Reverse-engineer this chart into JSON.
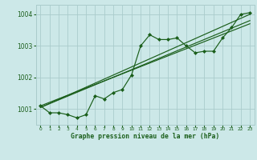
{
  "title": "Graphe pression niveau de la mer (hPa)",
  "bg_color": "#cce8e8",
  "grid_color": "#aacccc",
  "line_color": "#1a5e1a",
  "marker_color": "#1a5e1a",
  "xlim": [
    -0.5,
    23.5
  ],
  "ylim": [
    1000.5,
    1004.3
  ],
  "yticks": [
    1001,
    1002,
    1003,
    1004
  ],
  "xticks": [
    0,
    1,
    2,
    3,
    4,
    5,
    6,
    7,
    8,
    9,
    10,
    11,
    12,
    13,
    14,
    15,
    16,
    17,
    18,
    19,
    20,
    21,
    22,
    23
  ],
  "series": [
    [
      0,
      1001.1
    ],
    [
      1,
      1000.88
    ],
    [
      2,
      1000.88
    ],
    [
      3,
      1000.82
    ],
    [
      4,
      1000.72
    ],
    [
      5,
      1000.82
    ],
    [
      6,
      1001.42
    ],
    [
      7,
      1001.32
    ],
    [
      8,
      1001.52
    ],
    [
      9,
      1001.62
    ],
    [
      10,
      1002.08
    ],
    [
      11,
      1003.0
    ],
    [
      12,
      1003.35
    ],
    [
      13,
      1003.2
    ],
    [
      14,
      1003.2
    ],
    [
      15,
      1003.25
    ],
    [
      16,
      1003.0
    ],
    [
      17,
      1002.78
    ],
    [
      18,
      1002.83
    ],
    [
      19,
      1002.83
    ],
    [
      20,
      1003.25
    ],
    [
      21,
      1003.58
    ],
    [
      22,
      1004.0
    ],
    [
      23,
      1004.05
    ]
  ],
  "trend_lines": [
    [
      [
        0,
        1001.05
      ],
      [
        23,
        1004.0
      ]
    ],
    [
      [
        0,
        1001.05
      ],
      [
        23,
        1003.8
      ]
    ],
    [
      [
        0,
        1001.1
      ],
      [
        23,
        1003.7
      ]
    ]
  ],
  "fig_width": 3.2,
  "fig_height": 2.0,
  "dpi": 100
}
